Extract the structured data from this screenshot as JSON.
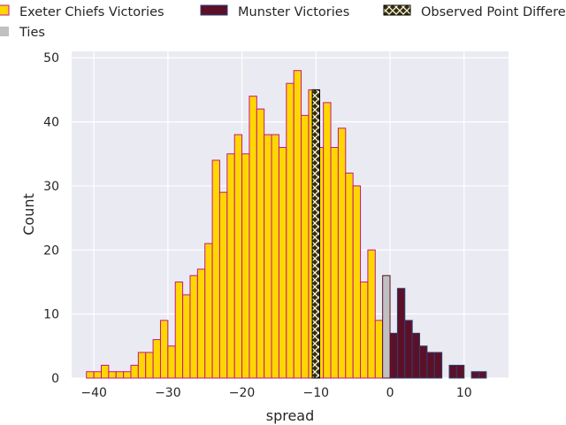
{
  "chart_data": {
    "type": "bar",
    "title": "",
    "xlabel": "spread",
    "ylabel": "Count",
    "xlim": [
      -43,
      16
    ],
    "ylim": [
      0,
      51
    ],
    "bin_width": 1,
    "grid": true,
    "legend_placement": "top",
    "x_ticks": [
      -40,
      -30,
      -20,
      -10,
      0,
      10
    ],
    "y_ticks": [
      0,
      10,
      20,
      30,
      40,
      50
    ],
    "x_tick_labels": [
      "−40",
      "−30",
      "−20",
      "−10",
      "0",
      "10"
    ],
    "y_tick_labels": [
      "0",
      "10",
      "20",
      "30",
      "40",
      "50"
    ],
    "series": [
      {
        "name": "Exeter Chiefs Victories",
        "color": "#ffd700",
        "edge_color": "#c71585",
        "bins": [
          [
            -41,
            1
          ],
          [
            -40,
            1
          ],
          [
            -39,
            2
          ],
          [
            -38,
            1
          ],
          [
            -37,
            1
          ],
          [
            -36,
            1
          ],
          [
            -35,
            2
          ],
          [
            -34,
            4
          ],
          [
            -33,
            4
          ],
          [
            -32,
            6
          ],
          [
            -31,
            9
          ],
          [
            -30,
            5
          ],
          [
            -29,
            15
          ],
          [
            -28,
            13
          ],
          [
            -27,
            16
          ],
          [
            -26,
            17
          ],
          [
            -25,
            21
          ],
          [
            -24,
            34
          ],
          [
            -23,
            29
          ],
          [
            -22,
            35
          ],
          [
            -21,
            38
          ],
          [
            -20,
            35
          ],
          [
            -19,
            44
          ],
          [
            -18,
            42
          ],
          [
            -17,
            38
          ],
          [
            -16,
            38
          ],
          [
            -15,
            36
          ],
          [
            -14,
            46
          ],
          [
            -13,
            48
          ],
          [
            -12,
            41
          ],
          [
            -11,
            45
          ],
          [
            -10,
            36
          ],
          [
            -9,
            43
          ],
          [
            -8,
            36
          ],
          [
            -7,
            39
          ],
          [
            -6,
            32
          ],
          [
            -5,
            30
          ],
          [
            -4,
            15
          ],
          [
            -3,
            20
          ],
          [
            -2,
            9
          ]
        ]
      },
      {
        "name": "Munster Victories",
        "color": "#5c1028",
        "edge_color": "#2f3f6f",
        "bins": [
          [
            0,
            7
          ],
          [
            1,
            14
          ],
          [
            2,
            9
          ],
          [
            3,
            7
          ],
          [
            4,
            5
          ],
          [
            5,
            4
          ],
          [
            6,
            4
          ],
          [
            8,
            2
          ],
          [
            9,
            2
          ],
          [
            11,
            1
          ],
          [
            12,
            1
          ]
        ]
      },
      {
        "name": "Ties",
        "color": "#c0c0c0",
        "edge_color": "#5c1028",
        "bins": [
          [
            -1,
            16
          ]
        ]
      }
    ],
    "observed": {
      "name": "Observed Point Differential",
      "x": -10,
      "height": 45,
      "color": "#000000"
    }
  }
}
